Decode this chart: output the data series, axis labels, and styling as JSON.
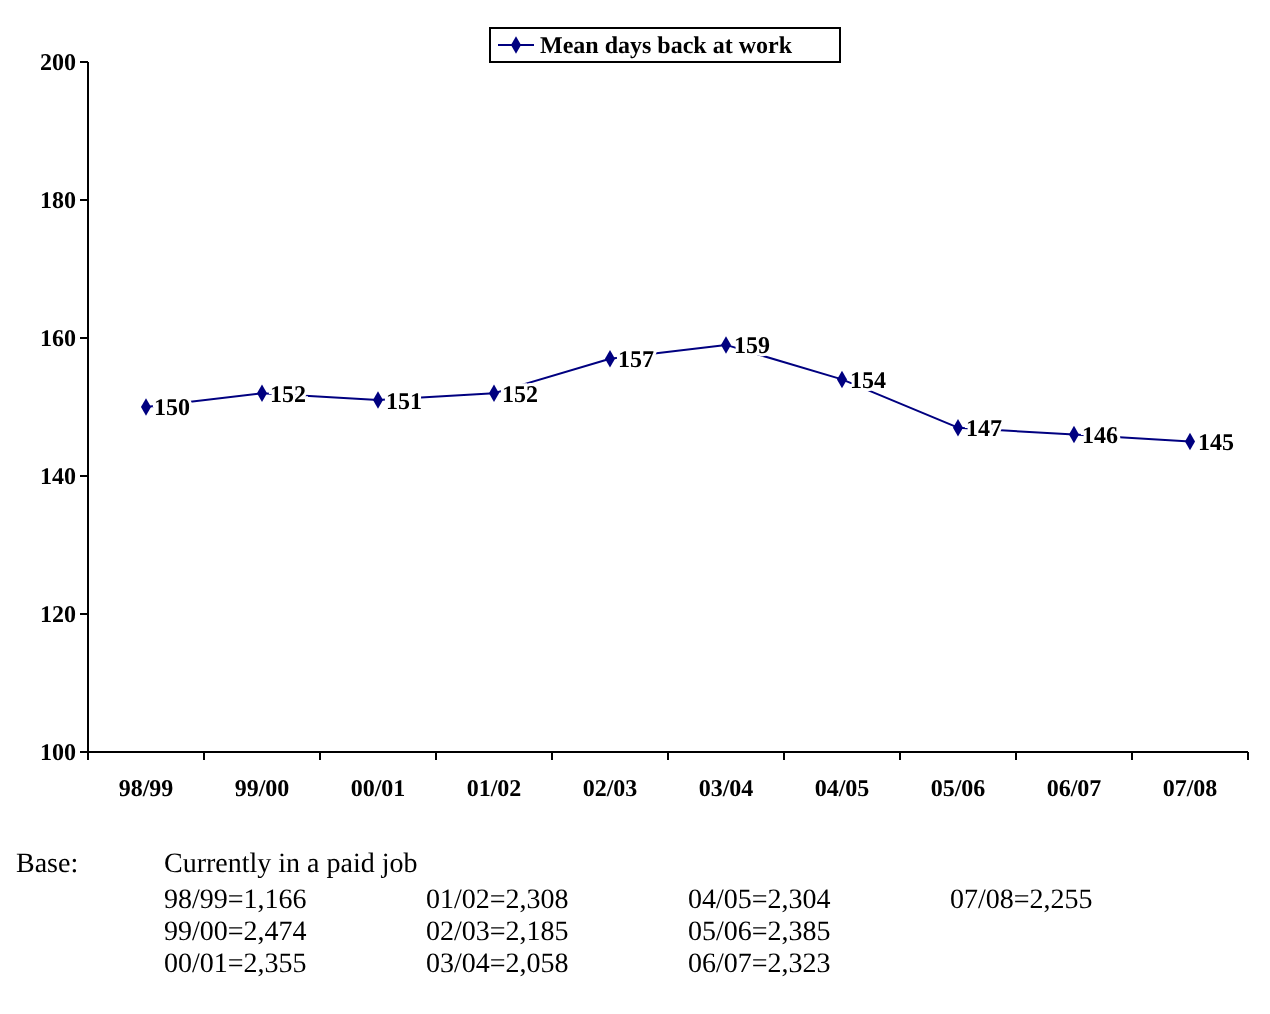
{
  "chart_data": {
    "type": "line",
    "categories": [
      "98/99",
      "99/00",
      "00/01",
      "01/02",
      "02/03",
      "03/04",
      "04/05",
      "05/06",
      "06/07",
      "07/08"
    ],
    "series": [
      {
        "name": "Mean days back at work",
        "color": "#000080",
        "values": [
          150,
          152,
          151,
          152,
          157,
          159,
          154,
          147,
          146,
          145
        ]
      }
    ],
    "ylim": [
      100,
      200
    ],
    "yticks": [
      100,
      120,
      140,
      160,
      180,
      200
    ],
    "grid": false,
    "legend": "top",
    "marker": "diamond",
    "line_style": "solid",
    "data_labels": true,
    "annotations": [
      "Base:",
      "Currently in a paid job",
      "98/99=1,166",
      "99/00=2,474",
      "00/01=2,355",
      "01/02=2,308",
      "02/03=2,185",
      "03/04=2,058",
      "04/05=2,304",
      "05/06=2,385",
      "06/07=2,323",
      "07/08=2,255"
    ]
  }
}
